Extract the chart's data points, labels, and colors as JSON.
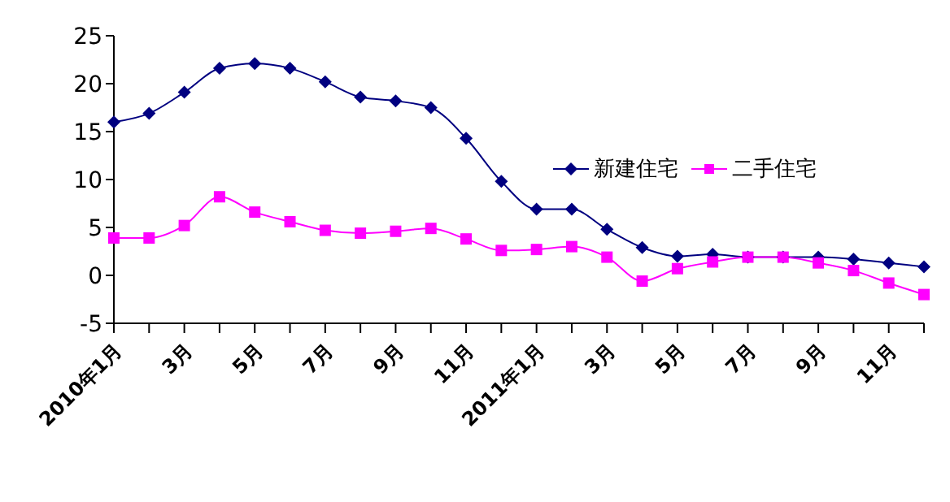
{
  "chart_data": {
    "type": "line",
    "categories": [
      "2010年1月",
      null,
      "3月",
      null,
      "5月",
      null,
      "7月",
      null,
      "9月",
      null,
      "11月",
      null,
      "2011年1月",
      null,
      "3月",
      null,
      "5月",
      null,
      "7月",
      null,
      "9月",
      null,
      "11月",
      null
    ],
    "series": [
      {
        "name": "新建住宅",
        "color": "#000080",
        "marker": "diamond",
        "values": [
          16.0,
          16.9,
          19.1,
          21.6,
          22.1,
          21.6,
          20.2,
          18.6,
          18.2,
          17.5,
          14.3,
          9.8,
          6.9,
          6.9,
          4.8,
          2.9,
          2.0,
          2.2,
          1.9,
          1.9,
          1.9,
          1.7,
          1.3,
          0.9
        ]
      },
      {
        "name": "二手住宅",
        "color": "#ff00ff",
        "marker": "square",
        "values": [
          3.9,
          3.9,
          5.2,
          8.2,
          6.6,
          5.6,
          4.7,
          4.4,
          4.6,
          4.9,
          3.8,
          2.6,
          2.7,
          3.0,
          1.9,
          -0.6,
          0.7,
          1.4,
          1.9,
          1.9,
          1.3,
          0.5,
          -0.8,
          -2.0
        ]
      }
    ],
    "ylim": [
      -5,
      25
    ],
    "yticks": [
      -5,
      0,
      5,
      10,
      15,
      20,
      25
    ],
    "grid": false,
    "legend": "right",
    "line_style": "solid"
  }
}
